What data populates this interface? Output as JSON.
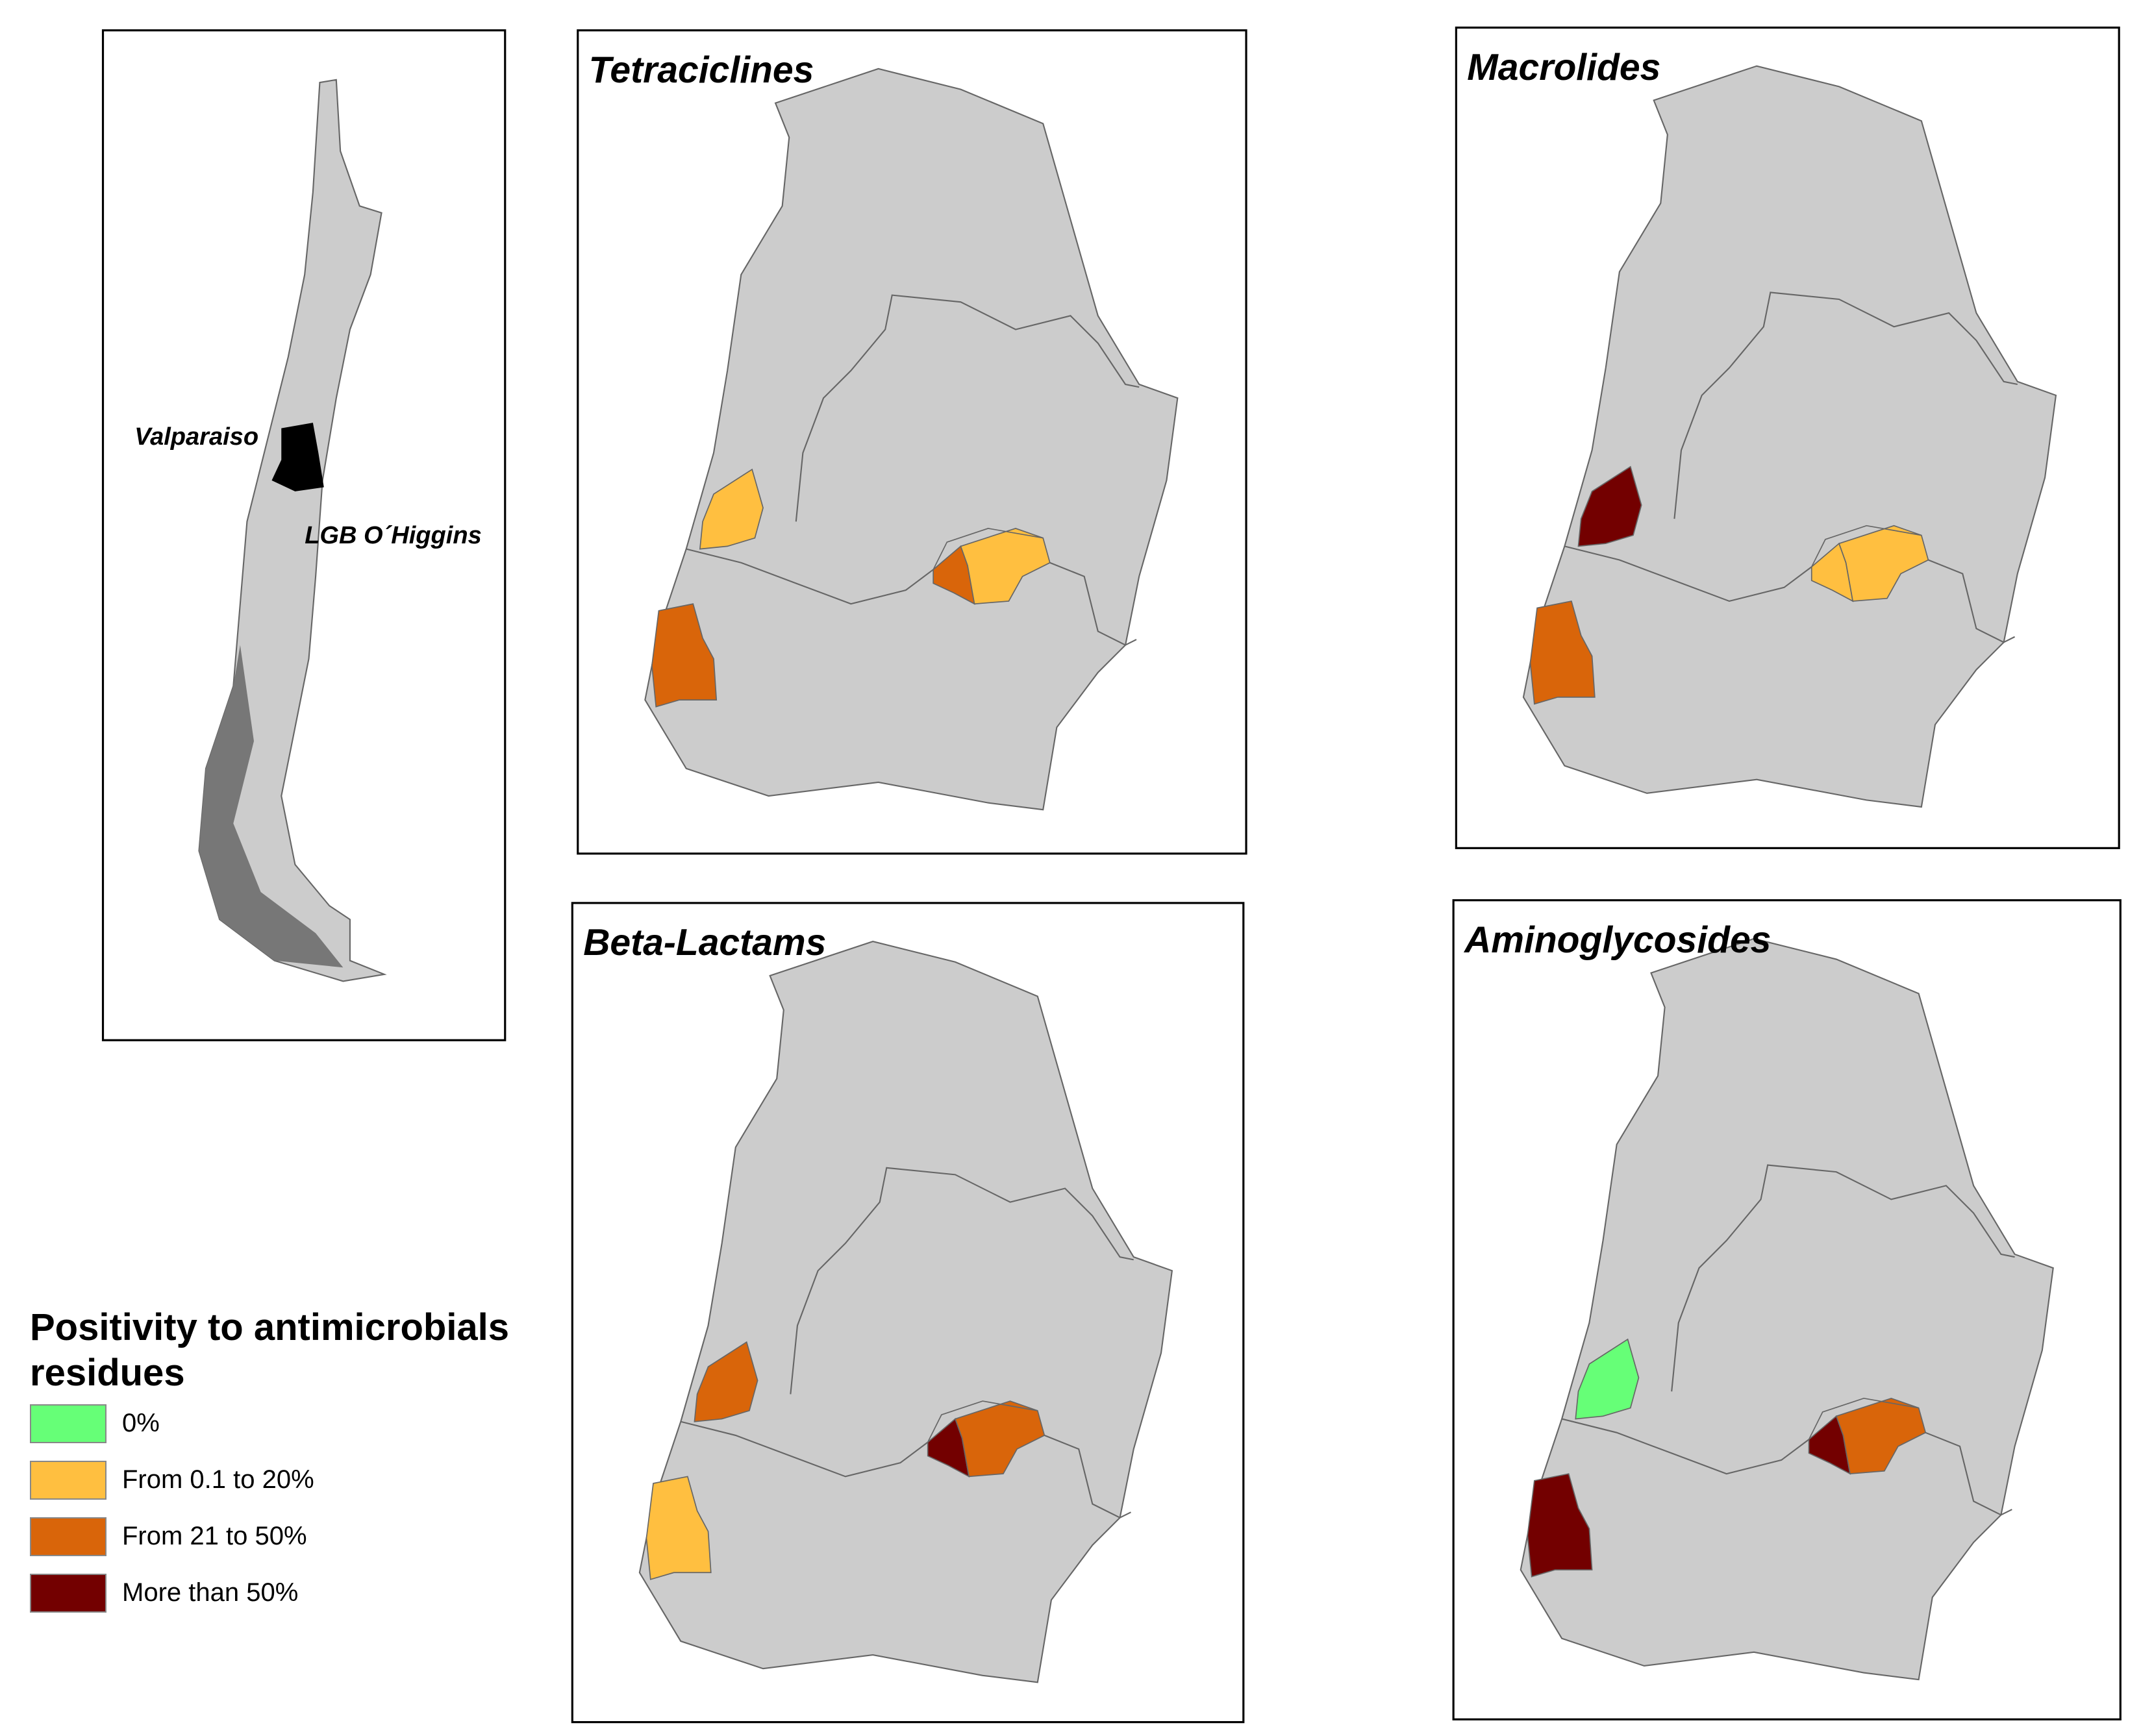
{
  "inset": {
    "labels": [
      "Valparaiso",
      "LGB O´Higgins"
    ]
  },
  "panels": [
    {
      "title": "Tetraciclines"
    },
    {
      "title": "Macrolides"
    },
    {
      "title": "Beta-Lactams"
    },
    {
      "title": "Aminoglycosides"
    }
  ],
  "legend": {
    "title": "Positivity to antimicrobials residues",
    "items": [
      {
        "label": "0%",
        "color": "#66ff77"
      },
      {
        "label": "From 0.1 to 20%",
        "color": "#ffbf40"
      },
      {
        "label": "From 21 to 50%",
        "color": "#d9650a"
      },
      {
        "label": "More than 50%",
        "color": "#730000"
      }
    ]
  }
}
